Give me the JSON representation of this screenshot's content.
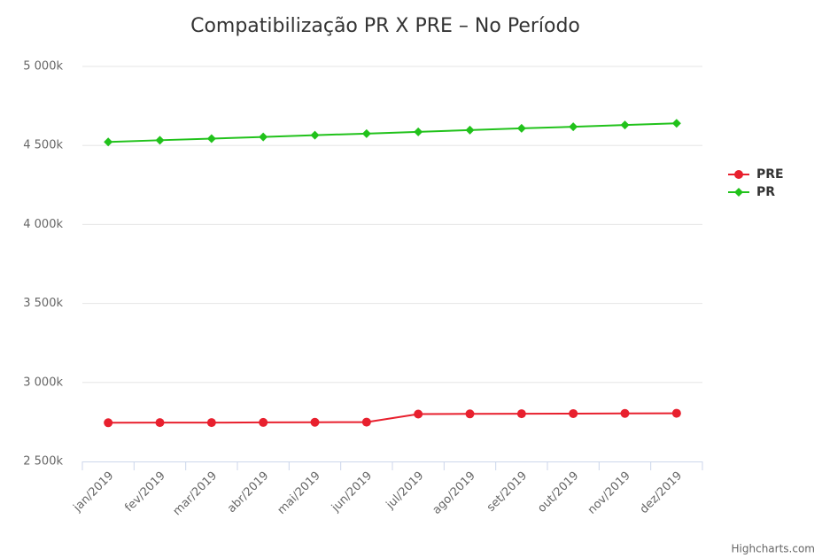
{
  "chart_data": {
    "type": "line",
    "title": "Compatibilização PR X PRE – No Período",
    "categories": [
      "jan/2019",
      "fev/2019",
      "mar/2019",
      "abr/2019",
      "mai/2019",
      "jun/2019",
      "jul/2019",
      "ago/2019",
      "set/2019",
      "out/2019",
      "nov/2019",
      "dez/2019"
    ],
    "series": [
      {
        "name": "PRE",
        "color": "#e8202e",
        "marker": "circle",
        "values": [
          2745,
          2746,
          2746,
          2747,
          2748,
          2749,
          2800,
          2801,
          2802,
          2803,
          2804,
          2805
        ]
      },
      {
        "name": "PR",
        "color": "#21c21b",
        "marker": "diamond",
        "values": [
          4522,
          4533,
          4543,
          4554,
          4565,
          4575,
          4586,
          4597,
          4608,
          4618,
          4629,
          4640
        ]
      }
    ],
    "ylim": [
      2500,
      5000
    ],
    "yticks": [
      {
        "value": 2500,
        "label": "2 500k"
      },
      {
        "value": 3000,
        "label": "3 000k"
      },
      {
        "value": 3500,
        "label": "3 500k"
      },
      {
        "value": 4000,
        "label": "4 000k"
      },
      {
        "value": 4500,
        "label": "4 500k"
      },
      {
        "value": 5000,
        "label": "5 000k"
      }
    ],
    "grid": true,
    "legend": "right",
    "credits": "Highcharts.com"
  }
}
